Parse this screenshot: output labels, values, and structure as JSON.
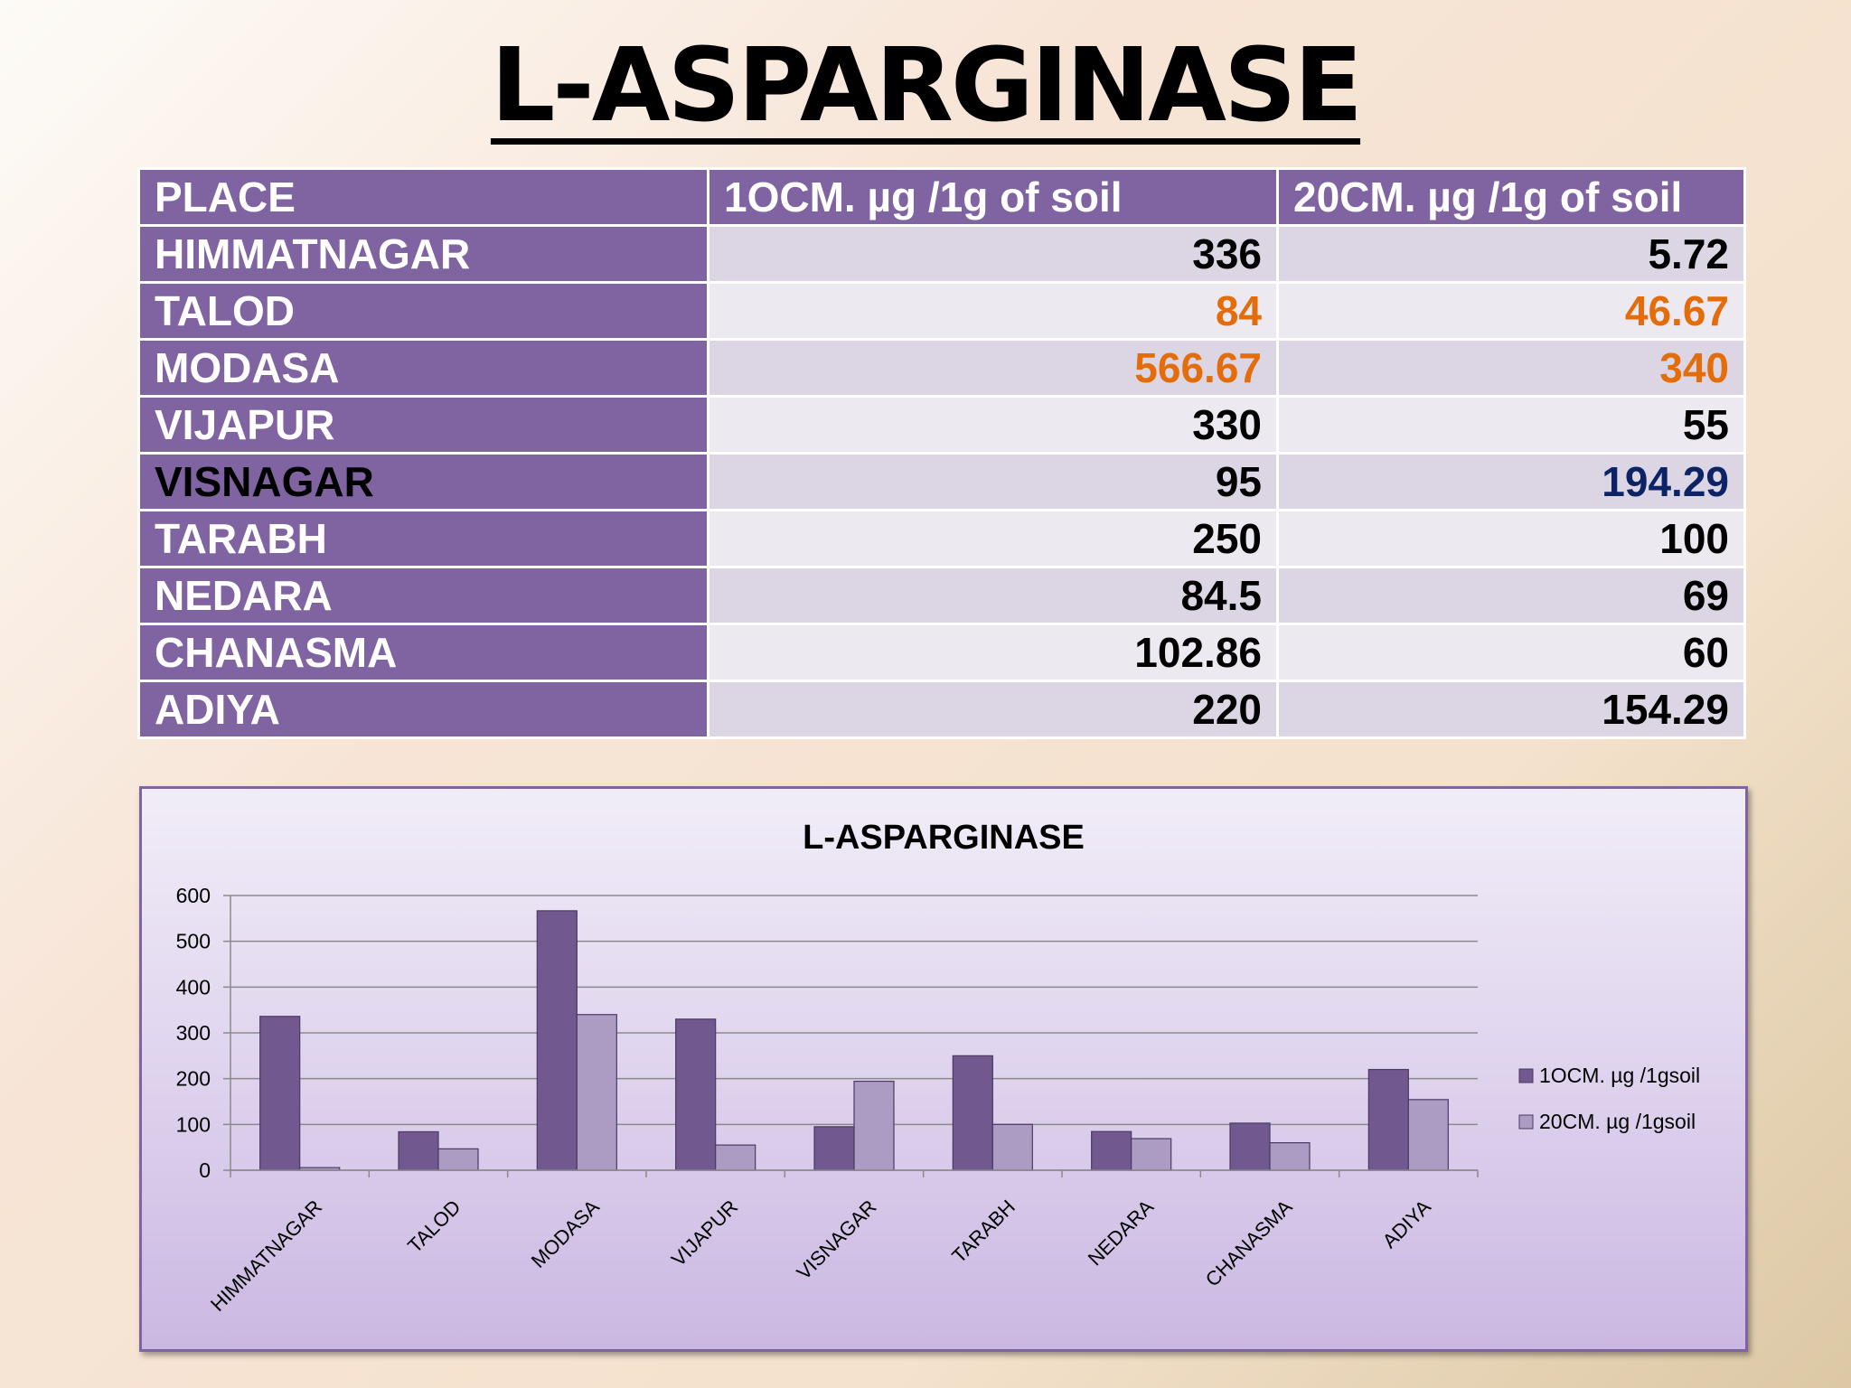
{
  "title": "L-ASPARGINASE",
  "table": {
    "headers": [
      "PLACE",
      "1OCM. µg /1g of soil",
      "20CM. µg /1g of soil"
    ],
    "rows": [
      {
        "place": "HIMMATNAGAR",
        "cm10": "336",
        "cm20": "5.72"
      },
      {
        "place": "TALOD",
        "cm10": "84",
        "cm20": "46.67"
      },
      {
        "place": "MODASA",
        "cm10": "566.67",
        "cm20": "340"
      },
      {
        "place": "VIJAPUR",
        "cm10": "330",
        "cm20": "55"
      },
      {
        "place": "VISNAGAR",
        "cm10": "95",
        "cm20": "194.29"
      },
      {
        "place": "TARABH",
        "cm10": "250",
        "cm20": "100"
      },
      {
        "place": "NEDARA",
        "cm10": "84.5",
        "cm20": "69"
      },
      {
        "place": "CHANASMA",
        "cm10": "102.86",
        "cm20": "60"
      },
      {
        "place": "ADIYA",
        "cm10": "220",
        "cm20": "154.29"
      }
    ]
  },
  "colors": {
    "header_fill": "#8064a2",
    "highlight_orange": "#e46c0a",
    "highlight_navy": "#0c2366",
    "series_10cm": "#71598f",
    "series_20cm": "#ac9cc4"
  },
  "chart_data": {
    "type": "bar",
    "title": "L-ASPARGINASE",
    "categories": [
      "HIMMATNAGAR",
      "TALOD",
      "MODASA",
      "VIJAPUR",
      "VISNAGAR",
      "TARABH",
      "NEDARA",
      "CHANASMA",
      "ADIYA"
    ],
    "series": [
      {
        "name": "1OCM. µg /1gsoil",
        "values": [
          336,
          84,
          566.67,
          330,
          95,
          250,
          84.5,
          102.86,
          220
        ]
      },
      {
        "name": "20CM. µg /1gsoil",
        "values": [
          5.72,
          46.67,
          340,
          55,
          194.29,
          100,
          69,
          60,
          154.29
        ]
      }
    ],
    "ylim": [
      0,
      600
    ],
    "yticks": [
      0,
      100,
      200,
      300,
      400,
      500,
      600
    ],
    "grid": true,
    "legend": "right"
  }
}
